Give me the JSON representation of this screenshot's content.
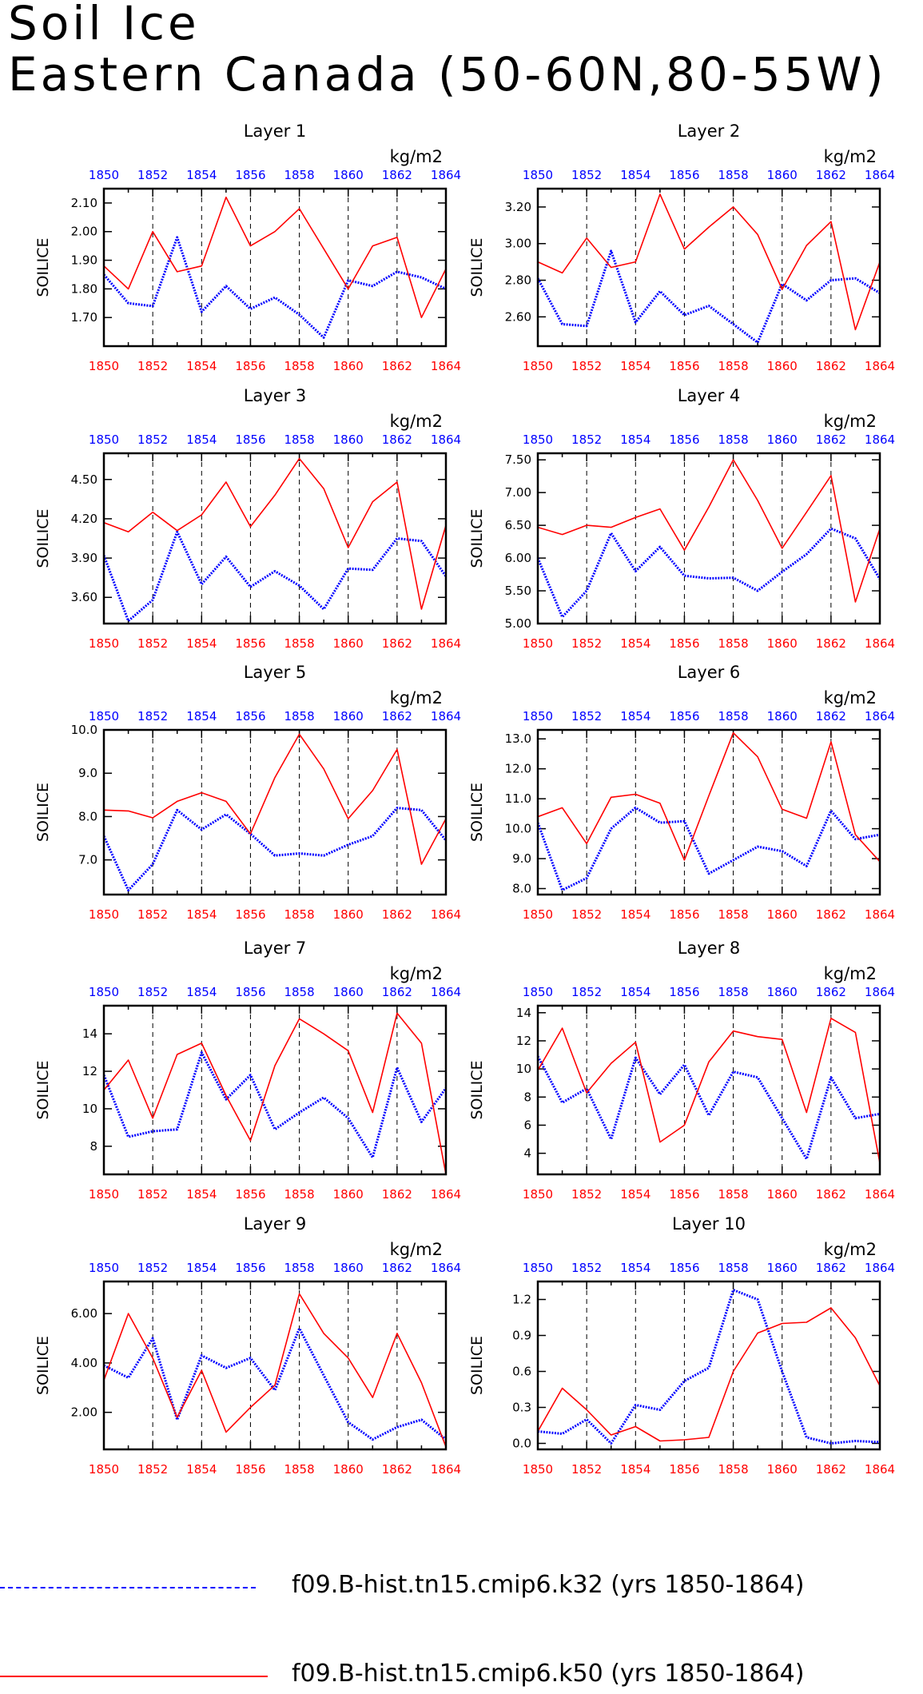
{
  "title": "Soil Ice",
  "subtitle": "Eastern Canada (50-60N,80-55W)",
  "colors": {
    "k32": "#0000ff",
    "k50": "#ff0000",
    "axis": "#000000"
  },
  "legend": [
    {
      "label": "f09.B-hist.tn15.cmip6.k32 (yrs 1850-1864)",
      "color": "#0000ff",
      "style": "dashed"
    },
    {
      "label": "f09.B-hist.tn15.cmip6.k50 (yrs 1850-1864)",
      "color": "#ff0000",
      "style": "solid"
    }
  ],
  "chart_data": [
    {
      "type": "line",
      "title": "Layer 1",
      "ylabel": "SOILICE",
      "units": "kg/m2",
      "x": [
        1850,
        1851,
        1852,
        1853,
        1854,
        1855,
        1856,
        1857,
        1858,
        1859,
        1860,
        1861,
        1862,
        1863,
        1864
      ],
      "xticks": [
        "1850",
        "1852",
        "1854",
        "1856",
        "1858",
        "1860",
        "1862",
        "1864"
      ],
      "ylim": [
        1.6,
        2.15
      ],
      "yticks": [
        "1.70",
        "1.80",
        "1.90",
        "2.00",
        "2.10"
      ],
      "series": [
        {
          "name": "f09.B-hist.tn15.cmip6.k32",
          "values": [
            1.85,
            1.75,
            1.74,
            1.98,
            1.72,
            1.81,
            1.73,
            1.77,
            1.71,
            1.63,
            1.83,
            1.81,
            1.86,
            1.84,
            1.8
          ]
        },
        {
          "name": "f09.B-hist.tn15.cmip6.k50",
          "values": [
            1.88,
            1.8,
            2.0,
            1.86,
            1.88,
            2.12,
            1.95,
            2.0,
            2.08,
            1.94,
            1.8,
            1.95,
            1.98,
            1.7,
            1.87
          ]
        }
      ]
    },
    {
      "type": "line",
      "title": "Layer 2",
      "ylabel": "SOILICE",
      "units": "kg/m2",
      "x": [
        1850,
        1851,
        1852,
        1853,
        1854,
        1855,
        1856,
        1857,
        1858,
        1859,
        1860,
        1861,
        1862,
        1863,
        1864
      ],
      "xticks": [
        "1850",
        "1852",
        "1854",
        "1856",
        "1858",
        "1860",
        "1862",
        "1864"
      ],
      "ylim": [
        2.44,
        3.3
      ],
      "yticks": [
        "2.60",
        "2.80",
        "3.00",
        "3.20"
      ],
      "series": [
        {
          "name": "f09.B-hist.tn15.cmip6.k32",
          "values": [
            2.81,
            2.56,
            2.55,
            2.96,
            2.57,
            2.74,
            2.61,
            2.66,
            2.56,
            2.46,
            2.78,
            2.69,
            2.8,
            2.81,
            2.73
          ]
        },
        {
          "name": "f09.B-hist.tn15.cmip6.k50",
          "values": [
            2.9,
            2.84,
            3.03,
            2.87,
            2.9,
            3.27,
            2.97,
            3.09,
            3.2,
            3.05,
            2.75,
            2.99,
            3.12,
            2.53,
            2.9
          ]
        }
      ]
    },
    {
      "type": "line",
      "title": "Layer 3",
      "ylabel": "SOILICE",
      "units": "kg/m2",
      "x": [
        1850,
        1851,
        1852,
        1853,
        1854,
        1855,
        1856,
        1857,
        1858,
        1859,
        1860,
        1861,
        1862,
        1863,
        1864
      ],
      "xticks": [
        "1850",
        "1852",
        "1854",
        "1856",
        "1858",
        "1860",
        "1862",
        "1864"
      ],
      "ylim": [
        3.4,
        4.7
      ],
      "yticks": [
        "3.60",
        "3.90",
        "4.20",
        "4.50"
      ],
      "series": [
        {
          "name": "f09.B-hist.tn15.cmip6.k32",
          "values": [
            3.92,
            3.42,
            3.58,
            4.1,
            3.7,
            3.91,
            3.68,
            3.8,
            3.69,
            3.51,
            3.82,
            3.81,
            4.05,
            4.03,
            3.76
          ]
        },
        {
          "name": "f09.B-hist.tn15.cmip6.k50",
          "values": [
            4.17,
            4.1,
            4.25,
            4.11,
            4.23,
            4.48,
            4.14,
            4.38,
            4.66,
            4.43,
            3.98,
            4.33,
            4.48,
            3.51,
            4.15
          ]
        }
      ]
    },
    {
      "type": "line",
      "title": "Layer 4",
      "ylabel": "SOILICE",
      "units": "kg/m2",
      "x": [
        1850,
        1851,
        1852,
        1853,
        1854,
        1855,
        1856,
        1857,
        1858,
        1859,
        1860,
        1861,
        1862,
        1863,
        1864
      ],
      "xticks": [
        "1850",
        "1852",
        "1854",
        "1856",
        "1858",
        "1860",
        "1862",
        "1864"
      ],
      "ylim": [
        5.0,
        7.6
      ],
      "yticks": [
        "5.00",
        "5.50",
        "6.00",
        "6.50",
        "7.00",
        "7.50"
      ],
      "series": [
        {
          "name": "f09.B-hist.tn15.cmip6.k32",
          "values": [
            6.0,
            5.1,
            5.5,
            6.38,
            5.8,
            6.17,
            5.73,
            5.69,
            5.7,
            5.5,
            5.79,
            6.06,
            6.45,
            6.3,
            5.68
          ]
        },
        {
          "name": "f09.B-hist.tn15.cmip6.k50",
          "values": [
            6.47,
            6.36,
            6.5,
            6.47,
            6.62,
            6.75,
            6.12,
            6.78,
            7.5,
            6.88,
            6.15,
            6.7,
            7.26,
            5.33,
            6.45
          ]
        }
      ]
    },
    {
      "type": "line",
      "title": "Layer 5",
      "ylabel": "SOILICE",
      "units": "kg/m2",
      "x": [
        1850,
        1851,
        1852,
        1853,
        1854,
        1855,
        1856,
        1857,
        1858,
        1859,
        1860,
        1861,
        1862,
        1863,
        1864
      ],
      "xticks": [
        "1850",
        "1852",
        "1854",
        "1856",
        "1858",
        "1860",
        "1862",
        "1864"
      ],
      "ylim": [
        6.2,
        10.0
      ],
      "yticks": [
        "7.0",
        "8.0",
        "9.0",
        "10.0"
      ],
      "series": [
        {
          "name": "f09.B-hist.tn15.cmip6.k32",
          "values": [
            7.55,
            6.3,
            6.9,
            8.15,
            7.7,
            8.05,
            7.6,
            7.1,
            7.15,
            7.1,
            7.35,
            7.55,
            8.2,
            8.15,
            7.45
          ]
        },
        {
          "name": "f09.B-hist.tn15.cmip6.k50",
          "values": [
            8.15,
            8.13,
            7.97,
            8.35,
            8.55,
            8.35,
            7.6,
            8.9,
            9.9,
            9.1,
            7.95,
            8.6,
            9.55,
            6.9,
            7.95
          ]
        }
      ]
    },
    {
      "type": "line",
      "title": "Layer 6",
      "ylabel": "SOILICE",
      "units": "kg/m2",
      "x": [
        1850,
        1851,
        1852,
        1853,
        1854,
        1855,
        1856,
        1857,
        1858,
        1859,
        1860,
        1861,
        1862,
        1863,
        1864
      ],
      "xticks": [
        "1850",
        "1852",
        "1854",
        "1856",
        "1858",
        "1860",
        "1862",
        "1864"
      ],
      "ylim": [
        7.8,
        13.3
      ],
      "yticks": [
        "8.0",
        "9.0",
        "10.0",
        "11.0",
        "12.0",
        "13.0"
      ],
      "series": [
        {
          "name": "f09.B-hist.tn15.cmip6.k32",
          "values": [
            10.2,
            7.95,
            8.35,
            10.0,
            10.7,
            10.2,
            10.25,
            8.5,
            8.95,
            9.4,
            9.25,
            8.75,
            10.6,
            9.65,
            9.8
          ]
        },
        {
          "name": "f09.B-hist.tn15.cmip6.k50",
          "values": [
            10.4,
            10.7,
            9.5,
            11.05,
            11.15,
            10.85,
            8.95,
            11.1,
            13.2,
            12.4,
            10.65,
            10.35,
            12.9,
            9.8,
            8.9
          ]
        }
      ]
    },
    {
      "type": "line",
      "title": "Layer 7",
      "ylabel": "SOILICE",
      "units": "kg/m2",
      "x": [
        1850,
        1851,
        1852,
        1853,
        1854,
        1855,
        1856,
        1857,
        1858,
        1859,
        1860,
        1861,
        1862,
        1863,
        1864
      ],
      "xticks": [
        "1850",
        "1852",
        "1854",
        "1856",
        "1858",
        "1860",
        "1862",
        "1864"
      ],
      "ylim": [
        6.5,
        15.5
      ],
      "yticks": [
        "8",
        "10",
        "12",
        "14"
      ],
      "series": [
        {
          "name": "f09.B-hist.tn15.cmip6.k32",
          "values": [
            11.8,
            8.5,
            8.8,
            8.9,
            13.0,
            10.5,
            11.8,
            8.9,
            9.8,
            10.6,
            9.5,
            7.4,
            12.2,
            9.3,
            11.1
          ]
        },
        {
          "name": "f09.B-hist.tn15.cmip6.k50",
          "values": [
            11.0,
            12.6,
            9.5,
            12.9,
            13.5,
            10.7,
            8.3,
            12.3,
            14.8,
            14.0,
            13.1,
            9.8,
            15.1,
            13.5,
            6.5
          ]
        }
      ]
    },
    {
      "type": "line",
      "title": "Layer 8",
      "ylabel": "SOILICE",
      "units": "kg/m2",
      "x": [
        1850,
        1851,
        1852,
        1853,
        1854,
        1855,
        1856,
        1857,
        1858,
        1859,
        1860,
        1861,
        1862,
        1863,
        1864
      ],
      "xticks": [
        "1850",
        "1852",
        "1854",
        "1856",
        "1858",
        "1860",
        "1862",
        "1864"
      ],
      "ylim": [
        2.5,
        14.5
      ],
      "yticks": [
        "4",
        "6",
        "8",
        "10",
        "12",
        "14"
      ],
      "series": [
        {
          "name": "f09.B-hist.tn15.cmip6.k32",
          "values": [
            10.9,
            7.6,
            8.6,
            5.0,
            10.8,
            8.2,
            10.3,
            6.7,
            9.8,
            9.4,
            6.5,
            3.6,
            9.4,
            6.5,
            6.8
          ]
        },
        {
          "name": "f09.B-hist.tn15.cmip6.k50",
          "values": [
            9.9,
            12.9,
            8.3,
            10.4,
            11.9,
            4.8,
            6.0,
            10.5,
            12.7,
            12.3,
            12.1,
            6.9,
            13.6,
            12.6,
            3.3
          ]
        }
      ]
    },
    {
      "type": "line",
      "title": "Layer 9",
      "ylabel": "SOILICE",
      "units": "kg/m2",
      "x": [
        1850,
        1851,
        1852,
        1853,
        1854,
        1855,
        1856,
        1857,
        1858,
        1859,
        1860,
        1861,
        1862,
        1863,
        1864
      ],
      "xticks": [
        "1850",
        "1852",
        "1854",
        "1856",
        "1858",
        "1860",
        "1862",
        "1864"
      ],
      "ylim": [
        0.5,
        7.3
      ],
      "yticks": [
        "2.00",
        "4.00",
        "6.00"
      ],
      "series": [
        {
          "name": "f09.B-hist.tn15.cmip6.k32",
          "values": [
            3.9,
            3.4,
            5.0,
            1.7,
            4.3,
            3.8,
            4.2,
            2.9,
            5.4,
            3.5,
            1.6,
            0.9,
            1.4,
            1.7,
            0.9
          ]
        },
        {
          "name": "f09.B-hist.tn15.cmip6.k50",
          "values": [
            3.3,
            6.0,
            4.2,
            1.8,
            3.7,
            1.2,
            2.2,
            3.1,
            6.8,
            5.2,
            4.2,
            2.6,
            5.2,
            3.2,
            0.6
          ]
        }
      ]
    },
    {
      "type": "line",
      "title": "Layer 10",
      "ylabel": "SOILICE",
      "units": "kg/m2",
      "x": [
        1850,
        1851,
        1852,
        1853,
        1854,
        1855,
        1856,
        1857,
        1858,
        1859,
        1860,
        1861,
        1862,
        1863,
        1864
      ],
      "xticks": [
        "1850",
        "1852",
        "1854",
        "1856",
        "1858",
        "1860",
        "1862",
        "1864"
      ],
      "ylim": [
        -0.05,
        1.35
      ],
      "yticks": [
        "0.0",
        "0.3",
        "0.6",
        "0.9",
        "1.2"
      ],
      "series": [
        {
          "name": "f09.B-hist.tn15.cmip6.k32",
          "values": [
            0.1,
            0.08,
            0.2,
            0.0,
            0.32,
            0.28,
            0.52,
            0.63,
            1.28,
            1.2,
            0.6,
            0.05,
            0.0,
            0.02,
            0.01
          ]
        },
        {
          "name": "f09.B-hist.tn15.cmip6.k50",
          "values": [
            0.1,
            0.46,
            0.28,
            0.07,
            0.14,
            0.02,
            0.03,
            0.05,
            0.6,
            0.92,
            1.0,
            1.01,
            1.13,
            0.88,
            0.48
          ]
        }
      ]
    }
  ]
}
